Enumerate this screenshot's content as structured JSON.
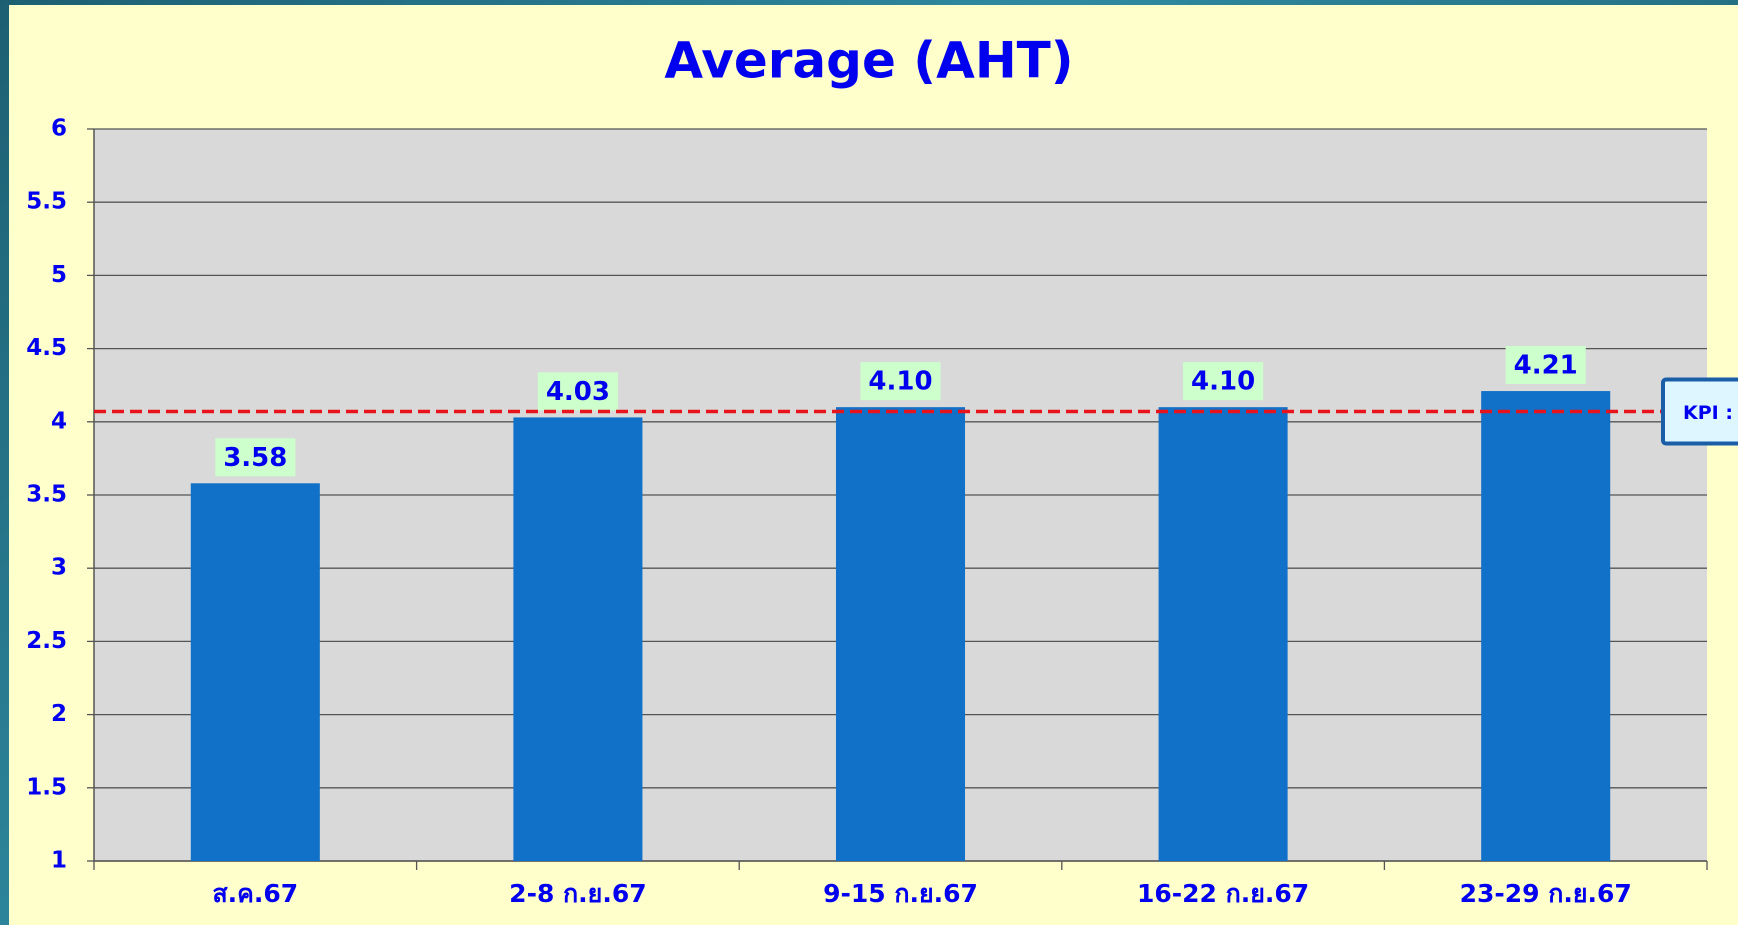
{
  "chart_data": {
    "type": "bar",
    "title": "Average (AHT)",
    "categories": [
      "ส.ค.67",
      "2-8 ก.ย.67",
      "9-15 ก.ย.67",
      "16-22 ก.ย.67",
      "23-29 ก.ย.67"
    ],
    "values": [
      3.58,
      4.03,
      4.1,
      4.1,
      4.21
    ],
    "value_labels": [
      "3.58",
      "4.03",
      "4.10",
      "4.10",
      "4.21"
    ],
    "color": "#1170c8",
    "ylim": [
      1,
      6
    ],
    "yticks": [
      1,
      1.5,
      2,
      2.5,
      3,
      3.5,
      4,
      4.5,
      5,
      5.5,
      6
    ],
    "grid": true,
    "kpi": {
      "label": "KPI :",
      "value": 4.07,
      "color": "#e8141c"
    }
  }
}
